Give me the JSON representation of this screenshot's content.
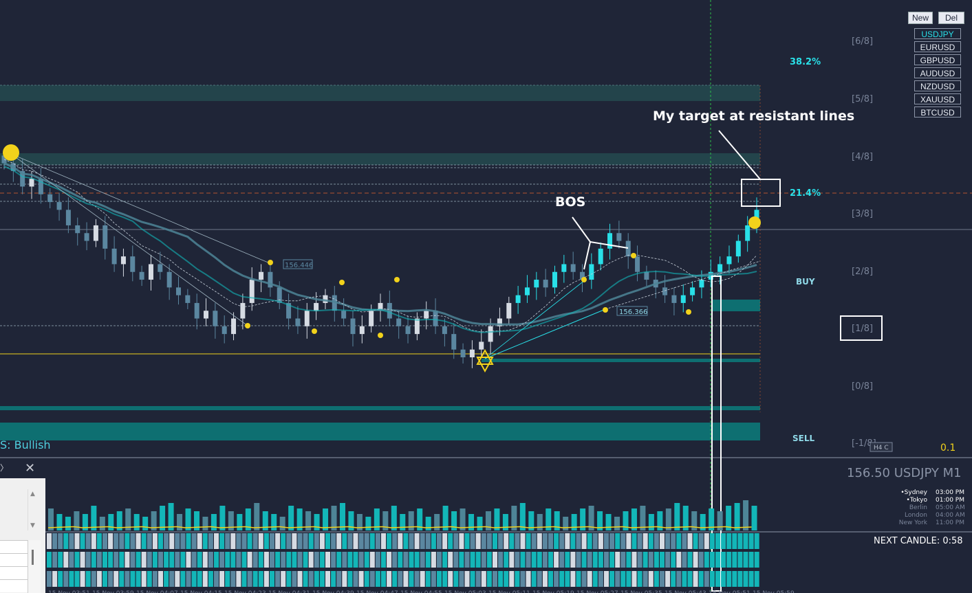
{
  "chart_data": {
    "type": "candlestick",
    "symbol": "USDJPY",
    "timeframe": "M1",
    "price_label": "156.50 USDJPY M1",
    "candles_approx_close": [
      156.58,
      156.57,
      156.55,
      156.56,
      156.54,
      156.53,
      156.52,
      156.5,
      156.49,
      156.48,
      156.5,
      156.47,
      156.45,
      156.46,
      156.44,
      156.43,
      156.45,
      156.44,
      156.42,
      156.41,
      156.4,
      156.38,
      156.39,
      156.37,
      156.36,
      156.38,
      156.4,
      156.43,
      156.44,
      156.42,
      156.4,
      156.38,
      156.37,
      156.39,
      156.4,
      156.41,
      156.39,
      156.38,
      156.36,
      156.37,
      156.39,
      156.4,
      156.38,
      156.37,
      156.36,
      156.38,
      156.39,
      156.37,
      156.36,
      156.34,
      156.33,
      156.34,
      156.35,
      156.37,
      156.38,
      156.4,
      156.41,
      156.42,
      156.43,
      156.42,
      156.44,
      156.45,
      156.44,
      156.43,
      156.45,
      156.47,
      156.49,
      156.48,
      156.46,
      156.44,
      156.43,
      156.42,
      156.41,
      156.4,
      156.41,
      156.42,
      156.43,
      156.44,
      156.45,
      156.46,
      156.48,
      156.5,
      156.52
    ],
    "swing_labels": [
      "156.446",
      "156.366"
    ],
    "fib_levels": [
      "38.2%",
      "21.4%"
    ],
    "murrey_levels": [
      "[6/8]",
      "[5/8]",
      "[4/8]",
      "[3/8]",
      "[2/8]",
      "[1/8]",
      "[0/8]",
      "[-1/8]"
    ],
    "signals": {
      "buy": "BUY",
      "sell": "SELL"
    },
    "annotations": {
      "bos": "BOS",
      "target": "My target at resistant lines",
      "trend_text": "S: Bullish"
    },
    "volume_approx": [
      8,
      6,
      5,
      7,
      6,
      9,
      5,
      6,
      7,
      8,
      6,
      5,
      7,
      9,
      10,
      6,
      8,
      7,
      5,
      6,
      9,
      7,
      6,
      8,
      10,
      7,
      6,
      5,
      9,
      8,
      7,
      6,
      8,
      9,
      10,
      7,
      6,
      5,
      8,
      7,
      9,
      6,
      7,
      8,
      5,
      6,
      9,
      7,
      8,
      6,
      5,
      7,
      8,
      6,
      9,
      10,
      7,
      6,
      8,
      7,
      5,
      6,
      8,
      9,
      7,
      6,
      5,
      7,
      8,
      9,
      6,
      7,
      8,
      10,
      9,
      7,
      6,
      8,
      7,
      9,
      10,
      11,
      9
    ],
    "x_tick_labels": [
      "15 Nov 03:51",
      "15 Nov 03:59",
      "15 Nov 04:07",
      "15 Nov 04:15",
      "15 Nov 04:23",
      "15 Nov 04:31",
      "15 Nov 04:39",
      "15 Nov 04:47",
      "15 Nov 04:55",
      "15 Nov 05:03",
      "15 Nov 05:11",
      "15 Nov 05:19",
      "15 Nov 05:27",
      "15 Nov 05:35",
      "15 Nov 05:43",
      "15 Nov 05:51",
      "15 Nov 05:59"
    ]
  },
  "toolbar": {
    "new_label": "New",
    "del_label": "Del"
  },
  "symbols": [
    "USDJPY",
    "EURUSD",
    "GBPUSD",
    "AUDUSD",
    "NZDUSD",
    "XAUUSD",
    "BTCUSD"
  ],
  "active_symbol": "USDJPY",
  "sessions": [
    {
      "name": "Sydney",
      "time": "03:00 PM",
      "active": true
    },
    {
      "name": "Tokyo",
      "time": "01:00 PM",
      "active": true
    },
    {
      "name": "Berlin",
      "time": "05:00 AM",
      "active": false
    },
    {
      "name": "London",
      "time": "04:00 AM",
      "active": false
    },
    {
      "name": "New York",
      "time": "11:00 PM",
      "active": false
    }
  ],
  "next_candle": "NEXT CANDLE: 0:58",
  "h4_badge": "H4 C",
  "small_value": "0.1",
  "colors": {
    "bg": "#1f2537",
    "teal": "#13b6b8",
    "cyan": "#29e0e8",
    "steel": "#5b87a0",
    "yellow": "#f2d21b",
    "grid": "#7a8499"
  }
}
